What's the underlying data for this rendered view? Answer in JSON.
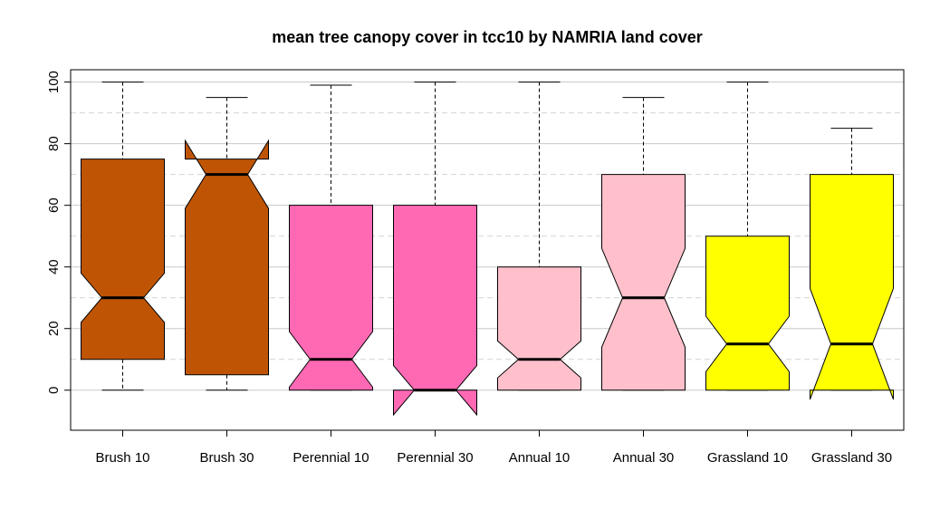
{
  "chart_data": {
    "type": "boxplot",
    "title": "mean tree canopy cover in tcc10 by NAMRIA land cover",
    "xlabel": "",
    "ylabel": "",
    "ylim": [
      -13,
      104
    ],
    "yticks": [
      0,
      20,
      40,
      60,
      80,
      100
    ],
    "grid": {
      "major": [
        0,
        20,
        40,
        60,
        80,
        100
      ],
      "minor_dashed": [
        10,
        30,
        50,
        70,
        90
      ]
    },
    "notched": true,
    "categories": [
      "Brush 10",
      "Brush 30",
      "Perennial 10",
      "Perennial 30",
      "Annual 10",
      "Annual 30",
      "Grassland 10",
      "Grassland 30"
    ],
    "colors": [
      "#bf5504",
      "#bf5504",
      "#ff69b4",
      "#ff69b4",
      "#ffc0cb",
      "#ffc0cb",
      "#ffff00",
      "#ffff00"
    ],
    "boxes": [
      {
        "whisker_low": 0,
        "q1": 10,
        "median": 30,
        "q3": 75,
        "whisker_high": 100,
        "notch_low": 22,
        "notch_high": 38
      },
      {
        "whisker_low": 0,
        "q1": 5,
        "median": 70,
        "q3": 75,
        "whisker_high": 95,
        "notch_low": 59,
        "notch_high": 81
      },
      {
        "whisker_low": 0,
        "q1": 0,
        "median": 10,
        "q3": 60,
        "whisker_high": 99,
        "notch_low": 1,
        "notch_high": 19
      },
      {
        "whisker_low": 0,
        "q1": 0,
        "median": 0,
        "q3": 60,
        "whisker_high": 100,
        "notch_low": -8,
        "notch_high": 8
      },
      {
        "whisker_low": 0,
        "q1": 0,
        "median": 10,
        "q3": 40,
        "whisker_high": 100,
        "notch_low": 4,
        "notch_high": 16
      },
      {
        "whisker_low": 0,
        "q1": 0,
        "median": 30,
        "q3": 70,
        "whisker_high": 95,
        "notch_low": 14,
        "notch_high": 46
      },
      {
        "whisker_low": 0,
        "q1": 0,
        "median": 15,
        "q3": 50,
        "whisker_high": 100,
        "notch_low": 6,
        "notch_high": 24
      },
      {
        "whisker_low": 0,
        "q1": 0,
        "median": 15,
        "q3": 70,
        "whisker_high": 85,
        "notch_low": -3,
        "notch_high": 33
      }
    ]
  }
}
